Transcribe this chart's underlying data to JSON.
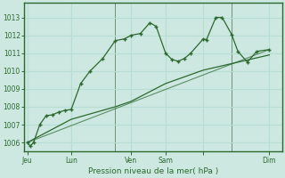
{
  "bg_color": "#cce8e0",
  "line_color": "#2d6830",
  "grid_color": "#b8ddd4",
  "xlabel": "Pression niveau de la mer( hPa )",
  "ylim": [
    1005.5,
    1013.8
  ],
  "xlim": [
    -1,
    81
  ],
  "yticks": [
    1006,
    1007,
    1008,
    1009,
    1010,
    1011,
    1012,
    1013
  ],
  "day_vlines": [
    14,
    28,
    33,
    44,
    56,
    65
  ],
  "day_tick_pos": [
    0,
    14,
    33,
    44,
    56,
    77
  ],
  "day_tick_labels": [
    "Jeu",
    "Lun",
    "Ven",
    "Sam",
    "",
    "Dim"
  ],
  "line1_x": [
    0,
    1,
    2,
    4,
    6,
    8,
    10,
    12,
    14,
    17,
    20,
    24,
    28,
    31,
    33,
    36,
    39,
    41,
    44,
    46,
    48,
    50,
    52,
    56,
    57,
    60,
    62,
    65,
    67,
    70,
    73,
    77
  ],
  "line1_y": [
    1006.0,
    1005.8,
    1006.0,
    1007.0,
    1007.5,
    1007.55,
    1007.7,
    1007.8,
    1007.85,
    1009.3,
    1010.0,
    1010.7,
    1011.7,
    1011.8,
    1012.0,
    1012.1,
    1012.7,
    1012.5,
    1011.0,
    1010.65,
    1010.55,
    1010.7,
    1011.0,
    1011.8,
    1011.75,
    1013.0,
    1013.0,
    1012.05,
    1011.1,
    1010.5,
    1011.1,
    1011.2
  ],
  "line2_x": [
    0,
    14,
    28,
    33,
    44,
    56,
    77
  ],
  "line2_y": [
    1006.0,
    1007.3,
    1008.0,
    1008.3,
    1009.3,
    1010.05,
    1010.9
  ],
  "line3_x": [
    0,
    77
  ],
  "line3_y": [
    1006.0,
    1011.2
  ]
}
